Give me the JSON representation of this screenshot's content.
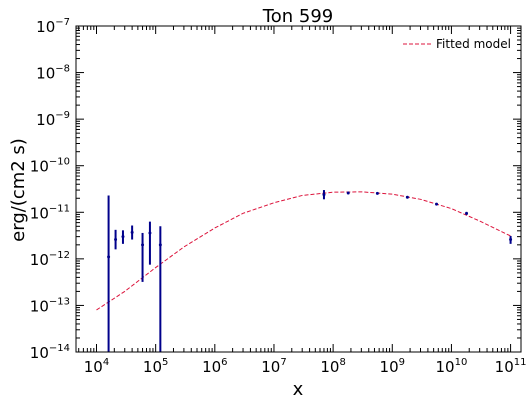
{
  "chart_data": {
    "type": "scatter",
    "title": "Ton 599",
    "xlabel": "x",
    "ylabel": "erg/(cm2 s)",
    "xscale": "log",
    "yscale": "log",
    "xlim": [
      4500.0,
      150000000000.0
    ],
    "ylim": [
      1e-14,
      1e-07
    ],
    "x_ticks": [
      {
        "exp": 4,
        "label": "10",
        "sup": "4"
      },
      {
        "exp": 5,
        "label": "10",
        "sup": "5"
      },
      {
        "exp": 6,
        "label": "10",
        "sup": "6"
      },
      {
        "exp": 7,
        "label": "10",
        "sup": "7"
      },
      {
        "exp": 8,
        "label": "10",
        "sup": "8"
      },
      {
        "exp": 9,
        "label": "10",
        "sup": "9"
      },
      {
        "exp": 10,
        "label": "10",
        "sup": "10"
      },
      {
        "exp": 11,
        "label": "10",
        "sup": "11"
      }
    ],
    "y_ticks": [
      {
        "exp": -14,
        "label": "10",
        "sup": "−14"
      },
      {
        "exp": -13,
        "label": "10",
        "sup": "−13"
      },
      {
        "exp": -12,
        "label": "10",
        "sup": "−12"
      },
      {
        "exp": -11,
        "label": "10",
        "sup": "−11"
      },
      {
        "exp": -10,
        "label": "10",
        "sup": "−10"
      },
      {
        "exp": -9,
        "label": "10",
        "sup": "−9"
      },
      {
        "exp": -8,
        "label": "10",
        "sup": "−8"
      },
      {
        "exp": -7,
        "label": "10",
        "sup": "−7"
      }
    ],
    "legend": {
      "placement": "top-right",
      "entries": [
        "Fitted model"
      ]
    },
    "colors": {
      "model": "#dc143c",
      "data": "#00008b"
    },
    "grid": false,
    "series": [
      {
        "kind": "errorbar",
        "points": [
          {
            "x": 16000.0,
            "y": 1.1e-12,
            "ylo": 1e-14,
            "yhi": 2.3e-11
          },
          {
            "x": 21000.0,
            "y": 2.6e-12,
            "ylo": 1.6e-12,
            "yhi": 4.2e-12
          },
          {
            "x": 28000.0,
            "y": 3e-12,
            "ylo": 2.1e-12,
            "yhi": 4.1e-12
          },
          {
            "x": 40000.0,
            "y": 3.7e-12,
            "ylo": 2.6e-12,
            "yhi": 5.2e-12
          },
          {
            "x": 60000.0,
            "y": 2e-12,
            "ylo": 3.2e-13,
            "yhi": 3.6e-12
          },
          {
            "x": 80000.0,
            "y": 3.6e-12,
            "ylo": 7.5e-13,
            "yhi": 6.3e-12
          },
          {
            "x": 120000.0,
            "y": 2e-12,
            "ylo": 1e-14,
            "yhi": 5e-12
          },
          {
            "x": 70000000.0,
            "y": 2.4e-11,
            "ylo": 1.9e-11,
            "yhi": 3e-11
          },
          {
            "x": 180000000.0,
            "y": 2.6e-11,
            "ylo": 2.45e-11,
            "yhi": 2.75e-11
          },
          {
            "x": 560000000.0,
            "y": 2.55e-11,
            "ylo": 2.45e-11,
            "yhi": 2.65e-11
          },
          {
            "x": 1800000000.0,
            "y": 2.1e-11,
            "ylo": 2e-11,
            "yhi": 2.2e-11
          },
          {
            "x": 5600000000.0,
            "y": 1.5e-11,
            "ylo": 1.42e-11,
            "yhi": 1.58e-11
          },
          {
            "x": 18000000000.0,
            "y": 9.5e-12,
            "ylo": 8.8e-12,
            "yhi": 1.02e-11
          },
          {
            "x": 100000000000.0,
            "y": 2.6e-12,
            "ylo": 2.1e-12,
            "yhi": 3.1e-12
          }
        ]
      },
      {
        "name": "Fitted model",
        "kind": "dashed-line",
        "x": [
          10000.0,
          30000.0,
          100000.0,
          300000.0,
          1000000.0,
          3000000.0,
          10000000.0,
          30000000.0,
          100000000.0,
          300000000.0,
          1000000000.0,
          3000000000.0,
          10000000000.0,
          30000000000.0,
          100000000000.0
        ],
        "y": [
          8e-14,
          2e-13,
          6.5e-13,
          1.8e-12,
          4.6e-12,
          9.5e-12,
          1.6e-11,
          2.3e-11,
          2.7e-11,
          2.75e-11,
          2.45e-11,
          1.9e-11,
          1.2e-11,
          6.5e-12,
          3.1e-12
        ]
      }
    ]
  }
}
